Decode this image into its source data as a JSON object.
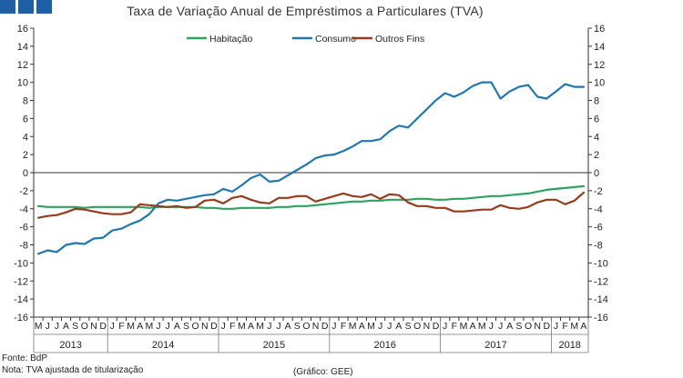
{
  "header": {
    "title": "Taxa de Variação Anual de Empréstimos a Particulares (TVA)"
  },
  "footer": {
    "source": "Fonte: BdP",
    "note": "Nota: TVA ajustada de titularização",
    "credit": "(Gráfico: GEE)"
  },
  "colors": {
    "brand": "#1f5fa8"
  },
  "chart_data": {
    "type": "line",
    "title": "Taxa de Variação Anual de Empréstimos a Particulares (TVA)",
    "ylim": [
      -16,
      16
    ],
    "yticks": [
      -16,
      -14,
      -12,
      -10,
      -8,
      -6,
      -4,
      -2,
      0,
      2,
      4,
      6,
      8,
      10,
      12,
      14,
      16
    ],
    "grid": false,
    "legend_position": "top",
    "x": [
      "M",
      "J",
      "J",
      "A",
      "S",
      "O",
      "N",
      "D",
      "J",
      "F",
      "M",
      "A",
      "M",
      "J",
      "J",
      "A",
      "S",
      "O",
      "N",
      "D",
      "J",
      "F",
      "M",
      "A",
      "M",
      "J",
      "J",
      "A",
      "S",
      "O",
      "N",
      "D",
      "J",
      "F",
      "M",
      "A",
      "M",
      "J",
      "J",
      "A",
      "S",
      "O",
      "N",
      "D",
      "J",
      "F",
      "M",
      "A",
      "M",
      "J",
      "J",
      "A",
      "S",
      "O",
      "N",
      "D",
      "J",
      "F",
      "M",
      "A"
    ],
    "years": [
      {
        "label": "2013",
        "start": 0,
        "end": 8
      },
      {
        "label": "2014",
        "start": 8,
        "end": 20
      },
      {
        "label": "2015",
        "start": 20,
        "end": 32
      },
      {
        "label": "2016",
        "start": 32,
        "end": 44
      },
      {
        "label": "2017",
        "start": 44,
        "end": 56
      },
      {
        "label": "2018",
        "start": 56,
        "end": 60
      }
    ],
    "series": [
      {
        "name": "Habitação",
        "color": "#2ca25f",
        "values": [
          -3.7,
          -3.8,
          -3.8,
          -3.8,
          -3.8,
          -3.9,
          -3.8,
          -3.8,
          -3.8,
          -3.8,
          -3.8,
          -3.8,
          -3.9,
          -3.8,
          -3.8,
          -3.8,
          -3.8,
          -3.8,
          -3.9,
          -3.9,
          -4.0,
          -4.0,
          -3.9,
          -3.9,
          -3.9,
          -3.9,
          -3.8,
          -3.8,
          -3.7,
          -3.7,
          -3.6,
          -3.5,
          -3.4,
          -3.3,
          -3.2,
          -3.2,
          -3.1,
          -3.1,
          -3.0,
          -3.0,
          -3.0,
          -2.9,
          -2.9,
          -3.0,
          -3.0,
          -2.9,
          -2.9,
          -2.8,
          -2.7,
          -2.6,
          -2.6,
          -2.5,
          -2.4,
          -2.3,
          -2.1,
          -1.9,
          -1.8,
          -1.7,
          -1.6,
          -1.5
        ]
      },
      {
        "name": "Consumo",
        "color": "#1f77b4",
        "values": [
          -9.0,
          -8.6,
          -8.8,
          -8.0,
          -7.8,
          -7.9,
          -7.3,
          -7.2,
          -6.4,
          -6.2,
          -5.7,
          -5.3,
          -4.6,
          -3.4,
          -3.0,
          -3.1,
          -2.9,
          -2.7,
          -2.5,
          -2.4,
          -1.8,
          -2.1,
          -1.4,
          -0.6,
          -0.2,
          -1.0,
          -0.9,
          -0.3,
          0.3,
          0.9,
          1.6,
          1.9,
          2.0,
          2.4,
          2.9,
          3.5,
          3.5,
          3.7,
          4.6,
          5.2,
          5.0,
          6.0,
          7.0,
          8.0,
          8.8,
          8.4,
          8.9,
          9.6,
          10.0,
          10.0,
          8.2,
          9.0,
          9.5,
          9.7,
          8.4,
          8.2,
          9.0,
          9.8,
          9.5,
          9.5
        ]
      },
      {
        "name": "Outros Fins",
        "color": "#9b3a1a",
        "values": [
          -5.0,
          -4.8,
          -4.7,
          -4.4,
          -4.0,
          -4.1,
          -4.3,
          -4.5,
          -4.6,
          -4.6,
          -4.4,
          -3.5,
          -3.6,
          -3.7,
          -3.8,
          -3.7,
          -3.9,
          -3.8,
          -3.1,
          -3.0,
          -3.4,
          -2.8,
          -2.6,
          -3.0,
          -3.3,
          -3.4,
          -2.8,
          -2.8,
          -2.6,
          -2.6,
          -3.2,
          -2.9,
          -2.6,
          -2.3,
          -2.6,
          -2.7,
          -2.4,
          -2.9,
          -2.4,
          -2.5,
          -3.3,
          -3.7,
          -3.7,
          -3.9,
          -3.9,
          -4.3,
          -4.3,
          -4.2,
          -4.1,
          -4.1,
          -3.6,
          -3.9,
          -4.0,
          -3.8,
          -3.3,
          -3.0,
          -3.0,
          -3.5,
          -3.1,
          -2.2
        ]
      }
    ]
  }
}
